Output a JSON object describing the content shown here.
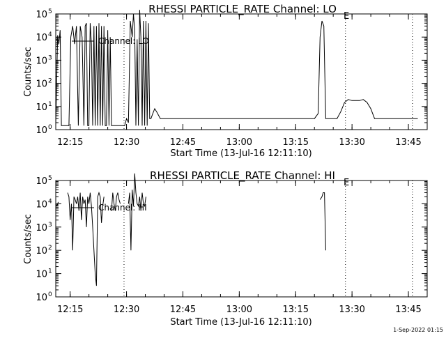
{
  "chart_data": [
    {
      "type": "line",
      "title": "RHESSI PARTICLE_RATE Channel: LO",
      "xlabel": "Start Time (13-Jul-16 12:11:10)",
      "ylabel": "Counts/sec",
      "y_scale": "log",
      "ylim": [
        1,
        100000
      ],
      "xlim": [
        "12:11:10",
        "13:50:00"
      ],
      "x_tick_labels": [
        "12:15",
        "12:30",
        "12:45",
        "13:00",
        "13:15",
        "13:30",
        "13:45"
      ],
      "y_tick_labels": [
        "10^0",
        "10^1",
        "10^2",
        "10^3",
        "10^4",
        "10^5"
      ],
      "legend": "top-left",
      "marker_labels": [
        "E"
      ],
      "vertical_markers": [
        "12:29:20",
        "13:28:15",
        "13:46:05"
      ],
      "series": [
        {
          "name": "Channel: LO",
          "x": [
            "12:11:10",
            "12:11:40",
            "12:12:00",
            "12:12:20",
            "12:12:40",
            "12:13:00",
            "12:13:20",
            "12:13:40",
            "12:14:00",
            "12:14:20",
            "12:14:40",
            "12:15:10",
            "12:15:40",
            "12:16:10",
            "12:16:40",
            "12:17:10",
            "12:17:40",
            "12:18:10",
            "12:18:40",
            "12:19:00",
            "12:19:20",
            "12:19:40",
            "12:20:00",
            "12:20:20",
            "12:20:40",
            "12:21:00",
            "12:21:20",
            "12:21:40",
            "12:22:00",
            "12:22:20",
            "12:22:40",
            "12:23:00",
            "12:23:20",
            "12:23:40",
            "12:24:00",
            "12:24:20",
            "12:24:40",
            "12:25:00",
            "12:25:20",
            "12:25:40",
            "12:26:00",
            "12:26:20",
            "12:26:40",
            "12:27:00",
            "12:27:20",
            "12:27:40",
            "12:28:00",
            "12:28:30",
            "12:29:00",
            "12:29:30",
            "12:30:00",
            "12:30:30",
            "12:31:00",
            "12:31:30",
            "12:31:50",
            "12:32:10",
            "12:32:30",
            "12:32:50",
            "12:33:10",
            "12:33:30",
            "12:33:50",
            "12:34:10",
            "12:34:30",
            "12:34:50",
            "12:35:10",
            "12:35:30",
            "12:35:50",
            "12:36:10",
            "12:36:30",
            "12:37:00",
            "12:37:30",
            "12:38:00",
            "12:39:00",
            "12:40:00",
            "12:41:00",
            "12:45:00",
            "12:50:00",
            "12:55:00",
            "13:00:00",
            "13:05:00",
            "13:10:00",
            "13:15:00",
            "13:18:00",
            "13:20:00",
            "13:21:00",
            "13:21:30",
            "13:22:00",
            "13:22:30",
            "13:23:00",
            "13:23:30",
            "13:24:00",
            "13:25:00",
            "13:26:00",
            "13:27:00",
            "13:28:00",
            "13:29:00",
            "13:30:00",
            "13:31:00",
            "13:32:00",
            "13:33:00",
            "13:34:00",
            "13:35:00",
            "13:36:00",
            "13:37:00",
            "13:40:00",
            "13:43:00",
            "13:46:00",
            "13:47:30"
          ],
          "y": [
            1.5,
            12000,
            5000,
            20000,
            1.5,
            1.5,
            1.5,
            1.5,
            1.5,
            1.5,
            1.5,
            10000,
            30000,
            5000,
            30000,
            1.5,
            30000,
            10000,
            1.5,
            30000,
            40000,
            1.5,
            1.5,
            40000,
            5000,
            1.5,
            30000,
            1.5,
            30000,
            1.5,
            40000,
            1.5,
            30000,
            1.5,
            30000,
            1.5,
            1.5,
            20000,
            1.5,
            10000,
            1.5,
            1.5,
            1.5,
            1.5,
            1.5,
            1.5,
            1.5,
            1.5,
            1.5,
            1.5,
            3,
            2,
            50000,
            10000,
            100000,
            20000,
            1.5,
            8000,
            1.5,
            150000,
            10000,
            1.5,
            50000,
            1.5,
            50000,
            1.5,
            40000,
            3,
            3,
            5,
            8,
            6,
            3,
            3,
            3,
            3,
            3,
            3,
            3,
            3,
            3,
            3,
            3,
            3,
            5,
            10000,
            50000,
            30000,
            3,
            3,
            3,
            3,
            3,
            6,
            15,
            20,
            18,
            18,
            18,
            20,
            15,
            8,
            3,
            3,
            3,
            3,
            3,
            3
          ]
        }
      ]
    },
    {
      "type": "line",
      "title": "RHESSI PARTICLE_RATE Channel: HI",
      "xlabel": "Start Time (13-Jul-16 12:11:10)",
      "ylabel": "Counts/sec",
      "y_scale": "log",
      "ylim": [
        1,
        100000
      ],
      "xlim": [
        "12:11:10",
        "13:50:00"
      ],
      "x_tick_labels": [
        "12:15",
        "12:30",
        "12:45",
        "13:00",
        "13:15",
        "13:30",
        "13:45"
      ],
      "y_tick_labels": [
        "10^0",
        "10^1",
        "10^2",
        "10^3",
        "10^4",
        "10^5"
      ],
      "legend": "top-left",
      "marker_labels": [
        "E"
      ],
      "vertical_markers": [
        "12:29:20",
        "13:28:15",
        "13:46:05"
      ],
      "series": [
        {
          "name": "Channel: HI",
          "segments": [
            {
              "x": [
                "12:11:10",
                "12:11:30",
                "12:11:50"
              ],
              "y": [
                10000,
                8000,
                12000
              ]
            },
            {
              "x": [
                "12:14:20",
                "12:14:40",
                "12:15:00",
                "12:15:20",
                "12:15:40",
                "12:16:00",
                "12:16:20",
                "12:16:40",
                "12:17:00",
                "12:17:20",
                "12:17:40",
                "12:18:00",
                "12:18:20",
                "12:18:40",
                "12:19:00",
                "12:19:20",
                "12:19:40",
                "12:20:00",
                "12:20:20",
                "12:20:40",
                "12:21:00",
                "12:21:20",
                "12:21:40",
                "12:22:00",
                "12:22:20",
                "12:22:40",
                "12:23:00",
                "12:23:20",
                "12:23:40",
                "12:24:00"
              ],
              "y": [
                30000,
                20000,
                2000,
                10000,
                100,
                20000,
                15000,
                10000,
                20000,
                5000,
                30000,
                2000,
                20000,
                10000,
                15000,
                1000,
                20000,
                10000,
                30000,
                8000,
                1000,
                100,
                10,
                3,
                20000,
                30000,
                20000,
                1500,
                8000,
                20000
              ]
            },
            {
              "x": [
                "12:26:00",
                "12:26:20",
                "12:26:40",
                "12:27:00",
                "12:27:20",
                "12:27:40",
                "12:28:00",
                "12:28:20"
              ],
              "y": [
                5000,
                30000,
                10000,
                5000,
                20000,
                30000,
                15000,
                10000
              ]
            },
            {
              "x": [
                "12:30:30",
                "12:30:50",
                "12:31:10",
                "12:31:30",
                "12:31:50",
                "12:32:10",
                "12:32:30",
                "12:32:50",
                "12:33:10",
                "12:33:30",
                "12:33:50",
                "12:34:10",
                "12:34:30",
                "12:34:50",
                "12:35:10"
              ],
              "y": [
                10000,
                30000,
                100,
                40000,
                8000,
                200000,
                30000,
                10000,
                8000,
                20000,
                5000,
                30000,
                10000,
                8000,
                20000
              ]
            },
            {
              "x": [
                "13:21:30",
                "13:22:00",
                "13:22:20",
                "13:22:40",
                "13:23:00"
              ],
              "y": [
                15000,
                20000,
                30000,
                30000,
                100
              ]
            }
          ]
        }
      ]
    }
  ],
  "timestamp": "1-Sep-2022 01:15"
}
